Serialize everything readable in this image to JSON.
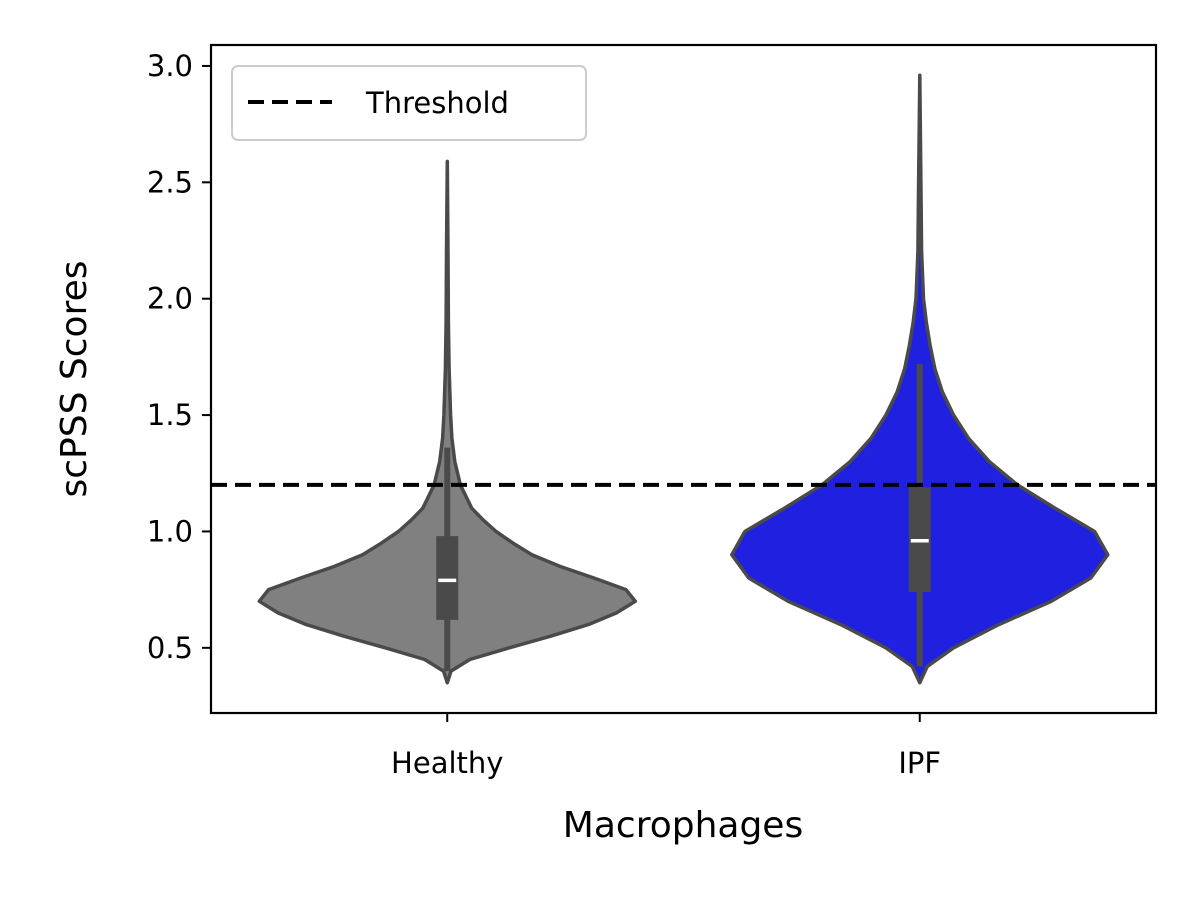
{
  "chart_data": {
    "type": "violin",
    "title": "",
    "xlabel": "Macrophages",
    "ylabel": "scPSS Scores",
    "ylim": [
      0.22,
      3.09
    ],
    "yticks": [
      "0.5",
      "1.0",
      "1.5",
      "2.0",
      "2.5",
      "3.0"
    ],
    "categories": [
      "Healthy",
      "IPF"
    ],
    "colors": {
      "Healthy": "#808080",
      "IPF": "#2020e0",
      "edge": "#4a4a4a",
      "median": "#ffffff",
      "threshold": "#000000"
    },
    "series": [
      {
        "name": "Healthy",
        "min": 0.35,
        "max": 2.59,
        "q1": 0.62,
        "median": 0.79,
        "q3": 0.98,
        "whisker_low": 0.4,
        "whisker_high": 1.36,
        "density": [
          [
            0.35,
            0.0
          ],
          [
            0.4,
            0.02
          ],
          [
            0.45,
            0.12
          ],
          [
            0.5,
            0.33
          ],
          [
            0.55,
            0.55
          ],
          [
            0.6,
            0.75
          ],
          [
            0.65,
            0.9
          ],
          [
            0.7,
            1.0
          ],
          [
            0.75,
            0.95
          ],
          [
            0.8,
            0.78
          ],
          [
            0.85,
            0.6
          ],
          [
            0.9,
            0.45
          ],
          [
            0.95,
            0.35
          ],
          [
            1.0,
            0.26
          ],
          [
            1.05,
            0.19
          ],
          [
            1.1,
            0.13
          ],
          [
            1.2,
            0.07
          ],
          [
            1.3,
            0.04
          ],
          [
            1.4,
            0.025
          ],
          [
            1.5,
            0.018
          ],
          [
            1.7,
            0.01
          ],
          [
            1.9,
            0.006
          ],
          [
            2.2,
            0.004
          ],
          [
            2.59,
            0.0
          ]
        ]
      },
      {
        "name": "IPF",
        "min": 0.35,
        "max": 2.96,
        "q1": 0.74,
        "median": 0.96,
        "q3": 1.19,
        "whisker_low": 0.42,
        "whisker_high": 1.72,
        "density": [
          [
            0.35,
            0.0
          ],
          [
            0.42,
            0.04
          ],
          [
            0.5,
            0.18
          ],
          [
            0.6,
            0.42
          ],
          [
            0.7,
            0.7
          ],
          [
            0.8,
            0.91
          ],
          [
            0.9,
            1.0
          ],
          [
            1.0,
            0.93
          ],
          [
            1.1,
            0.72
          ],
          [
            1.2,
            0.52
          ],
          [
            1.3,
            0.37
          ],
          [
            1.4,
            0.26
          ],
          [
            1.5,
            0.18
          ],
          [
            1.6,
            0.12
          ],
          [
            1.7,
            0.08
          ],
          [
            1.8,
            0.055
          ],
          [
            1.9,
            0.035
          ],
          [
            2.0,
            0.02
          ],
          [
            2.2,
            0.01
          ],
          [
            2.5,
            0.006
          ],
          [
            2.96,
            0.0
          ]
        ]
      }
    ],
    "threshold": {
      "label": "Threshold",
      "y": 1.2,
      "style": "dashed"
    },
    "legend": {
      "position": "top-left",
      "entries": [
        "Threshold"
      ]
    },
    "grid": false
  }
}
